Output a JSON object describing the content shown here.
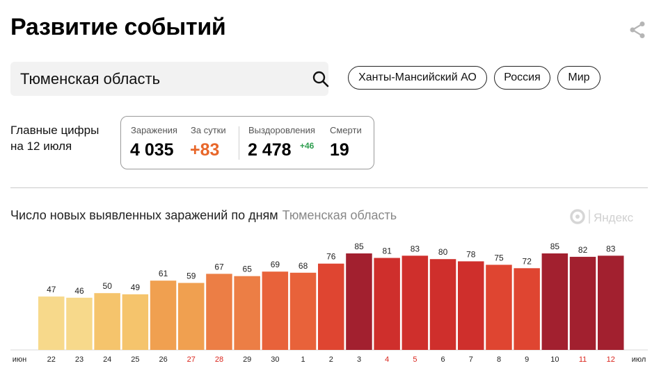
{
  "header": {
    "title": "Развитие событий",
    "share_icon": "share-icon"
  },
  "search": {
    "value": "Тюменская область",
    "icon": "search-icon"
  },
  "chips": [
    "Ханты-Мансийский АО",
    "Россия",
    "Мир"
  ],
  "main_figures": {
    "label_line1": "Главные цифры",
    "label_line2": "на 12 июля",
    "infections_label": "Заражения",
    "infections_value": "4 035",
    "per_day_label": "За сутки",
    "per_day_value": "+83",
    "recoveries_label": "Выздоровления",
    "recoveries_value": "2 478",
    "recoveries_delta": "+46",
    "deaths_label": "Смерти",
    "deaths_value": "19"
  },
  "colors": {
    "per_day": "#e8672a",
    "recoveries_delta": "#2e9e4f",
    "weekend_label": "#d9241b",
    "bar_scale": [
      "#f7d98b",
      "#f5c46c",
      "#f0a050",
      "#ec7e45",
      "#e8623a",
      "#df4531",
      "#cf2f2c",
      "#a2202f"
    ]
  },
  "chart_data": {
    "type": "bar",
    "title": "Число новых выявленных заражений по дням",
    "subtitle": "Тюменская область",
    "watermark": "Яндекс",
    "month_start_label": "июн",
    "month_end_label": "июл",
    "categories": [
      "22",
      "23",
      "24",
      "25",
      "26",
      "27",
      "28",
      "29",
      "30",
      "1",
      "2",
      "3",
      "4",
      "5",
      "6",
      "7",
      "8",
      "9",
      "10",
      "11",
      "12"
    ],
    "weekend": [
      false,
      false,
      false,
      false,
      false,
      true,
      true,
      false,
      false,
      false,
      false,
      false,
      true,
      true,
      false,
      false,
      false,
      false,
      false,
      true,
      true
    ],
    "values": [
      47,
      46,
      50,
      49,
      61,
      59,
      67,
      65,
      69,
      68,
      76,
      85,
      81,
      83,
      80,
      78,
      75,
      72,
      85,
      82,
      83
    ],
    "color_level": [
      0,
      0,
      1,
      1,
      2,
      2,
      3,
      3,
      4,
      4,
      5,
      7,
      6,
      6,
      6,
      6,
      5,
      5,
      7,
      7,
      7
    ]
  }
}
